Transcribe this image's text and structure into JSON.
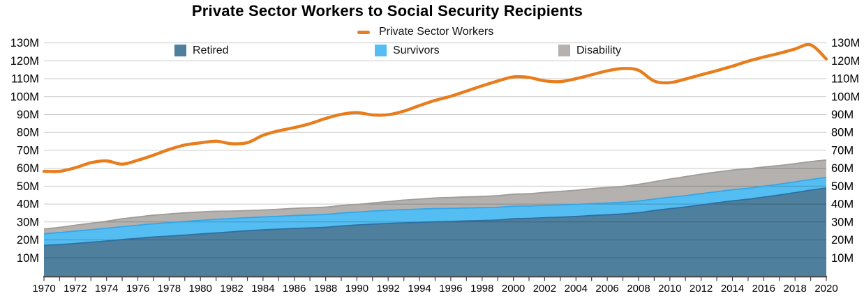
{
  "header": {
    "title": "Private Sector Workers to Social Security Recipients"
  },
  "legend": {
    "line_series": {
      "label": "Private Sector Workers",
      "color": "#E87D1E"
    },
    "area_series": [
      {
        "label": "Retired",
        "color": "#4E7F9D"
      },
      {
        "label": "Survivors",
        "color": "#54BDF2"
      },
      {
        "label": "Disability",
        "color": "#B4B1AF"
      }
    ]
  },
  "chart_data": {
    "type": "line+stacked-area",
    "title": "Private Sector Workers to Social Security Recipients",
    "unit": "millions of people",
    "grid": true,
    "legend_position": "top-center",
    "x": [
      1970,
      1971,
      1972,
      1973,
      1974,
      1975,
      1976,
      1977,
      1978,
      1979,
      1980,
      1981,
      1982,
      1983,
      1984,
      1985,
      1986,
      1987,
      1988,
      1989,
      1990,
      1991,
      1992,
      1993,
      1994,
      1995,
      1996,
      1997,
      1998,
      1999,
      2000,
      2001,
      2002,
      2003,
      2004,
      2005,
      2006,
      2007,
      2008,
      2009,
      2010,
      2011,
      2012,
      2013,
      2014,
      2015,
      2016,
      2017,
      2018,
      2019,
      2020
    ],
    "series": [
      {
        "name": "Private Sector Workers",
        "type": "line",
        "stack": false,
        "color": "#E87D1E",
        "values": [
          58.3,
          58.3,
          60.3,
          63.1,
          64.1,
          62.3,
          64.5,
          67.3,
          70.5,
          73.0,
          74.2,
          75.1,
          73.7,
          74.3,
          78.4,
          80.9,
          82.7,
          84.9,
          87.8,
          90.1,
          91.1,
          89.8,
          89.9,
          91.9,
          95.0,
          97.9,
          100.2,
          103.1,
          106.0,
          108.7,
          111.0,
          110.7,
          108.8,
          108.4,
          110.0,
          112.2,
          114.4,
          115.7,
          114.7,
          108.7,
          107.8,
          109.8,
          112.2,
          114.5,
          117.0,
          119.8,
          122.1,
          124.2,
          126.6,
          128.9,
          121.0
        ]
      },
      {
        "name": "Retired",
        "type": "area",
        "stack": true,
        "color": "#4E7F9D",
        "edge_color": "#2F6FA3",
        "values": [
          16.9,
          17.4,
          18.0,
          18.7,
          19.4,
          20.2,
          20.9,
          21.6,
          22.1,
          22.7,
          23.3,
          23.9,
          24.5,
          25.1,
          25.6,
          26.0,
          26.4,
          26.7,
          27.0,
          27.8,
          28.3,
          28.8,
          29.2,
          29.5,
          29.8,
          30.1,
          30.3,
          30.6,
          30.8,
          31.1,
          31.8,
          32.0,
          32.4,
          32.7,
          33.1,
          33.6,
          34.0,
          34.5,
          35.2,
          36.4,
          37.4,
          38.4,
          39.5,
          40.7,
          41.8,
          42.7,
          43.9,
          45.1,
          46.4,
          47.8,
          49.0
        ]
      },
      {
        "name": "Survivors",
        "type": "area",
        "stack": true,
        "color": "#54BDF2",
        "edge_color": "#35A7E8",
        "values": [
          6.5,
          6.7,
          6.9,
          7.0,
          7.1,
          7.2,
          7.3,
          7.4,
          7.5,
          7.6,
          7.6,
          7.6,
          7.4,
          7.3,
          7.2,
          7.2,
          7.2,
          7.2,
          7.2,
          7.2,
          7.2,
          7.3,
          7.3,
          7.4,
          7.4,
          7.4,
          7.3,
          7.2,
          7.2,
          7.1,
          7.0,
          6.9,
          6.9,
          6.8,
          6.7,
          6.7,
          6.6,
          6.5,
          6.5,
          6.4,
          6.4,
          6.3,
          6.3,
          6.2,
          6.2,
          6.1,
          6.1,
          6.0,
          6.0,
          5.9,
          5.9
        ]
      },
      {
        "name": "Disability",
        "type": "area",
        "stack": true,
        "color": "#B4B1AF",
        "edge_color": "#9E9B99",
        "values": [
          2.7,
          2.9,
          3.3,
          3.6,
          3.9,
          4.4,
          4.6,
          4.8,
          4.9,
          4.8,
          4.7,
          4.5,
          4.2,
          4.0,
          3.9,
          3.9,
          4.0,
          4.1,
          4.1,
          4.2,
          4.3,
          4.5,
          4.9,
          5.3,
          5.6,
          5.9,
          6.1,
          6.2,
          6.3,
          6.5,
          6.7,
          6.9,
          7.2,
          7.6,
          7.9,
          8.3,
          8.6,
          8.9,
          9.3,
          9.7,
          10.2,
          10.6,
          10.9,
          11.0,
          11.0,
          10.9,
          10.7,
          10.4,
          10.2,
          10.0,
          9.7
        ]
      }
    ],
    "y_axis": {
      "min": 0,
      "max": 134,
      "sides": [
        "left",
        "right"
      ],
      "tick_values": [
        10,
        20,
        30,
        40,
        50,
        60,
        70,
        80,
        90,
        100,
        110,
        120,
        130
      ],
      "tick_labels": [
        "10M",
        "20M",
        "30M",
        "40M",
        "50M",
        "60M",
        "70M",
        "80M",
        "90M",
        "100M",
        "110M",
        "120M",
        "130M"
      ]
    },
    "x_axis": {
      "min": 1970,
      "max": 2020,
      "tick_interval": 1,
      "label_values": [
        1970,
        1972,
        1974,
        1976,
        1978,
        1980,
        1982,
        1984,
        1986,
        1988,
        1990,
        1992,
        1994,
        1996,
        1998,
        2000,
        2002,
        2004,
        2006,
        2008,
        2010,
        2012,
        2014,
        2016,
        2018,
        2020
      ]
    },
    "colors": {
      "grid": "rgba(0,0,0,0.21)",
      "axis": "#3A3A3A",
      "label_text": "#000000"
    }
  }
}
